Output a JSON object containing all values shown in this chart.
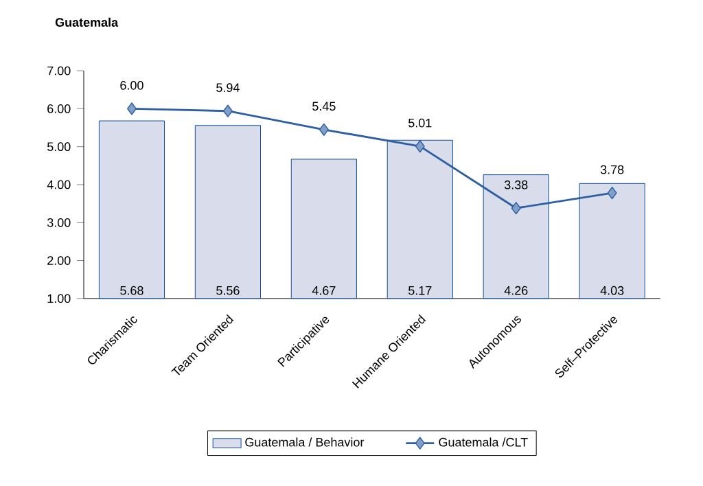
{
  "chart_data": {
    "type": "bar",
    "title": "Guatemala",
    "categories": [
      "Charismatic",
      "Team Oriented",
      "Participative",
      "Humane Oriented",
      "Autonomous",
      "Self–Protective"
    ],
    "series": [
      {
        "name": "Guatemala / Behavior",
        "color": "#d9dcea",
        "values": [
          5.68,
          5.56,
          4.67,
          5.17,
          4.26,
          4.03
        ],
        "value_labels": [
          "5.68",
          "5.56",
          "4.67",
          "5.17",
          "4.26",
          "4.03"
        ]
      },
      {
        "name": "Guatemala /CLT",
        "type": "line",
        "color": "#2e5fa3",
        "marker": "diamond",
        "values": [
          6.0,
          5.94,
          5.45,
          5.01,
          3.38,
          3.78
        ],
        "value_labels": [
          "6.00",
          "5.94",
          "5.45",
          "5.01",
          "3.38",
          "3.78"
        ]
      }
    ],
    "ylim": [
      1,
      7
    ],
    "yticks": [
      {
        "value": 1,
        "label": "1.00"
      },
      {
        "value": 2,
        "label": "2.00"
      },
      {
        "value": 3,
        "label": "3.00"
      },
      {
        "value": 4,
        "label": "4.00"
      },
      {
        "value": 5,
        "label": "5.00"
      },
      {
        "value": 6,
        "label": "6.00"
      },
      {
        "value": 7,
        "label": "7.00"
      }
    ],
    "legend": "bottom",
    "grid": false
  }
}
